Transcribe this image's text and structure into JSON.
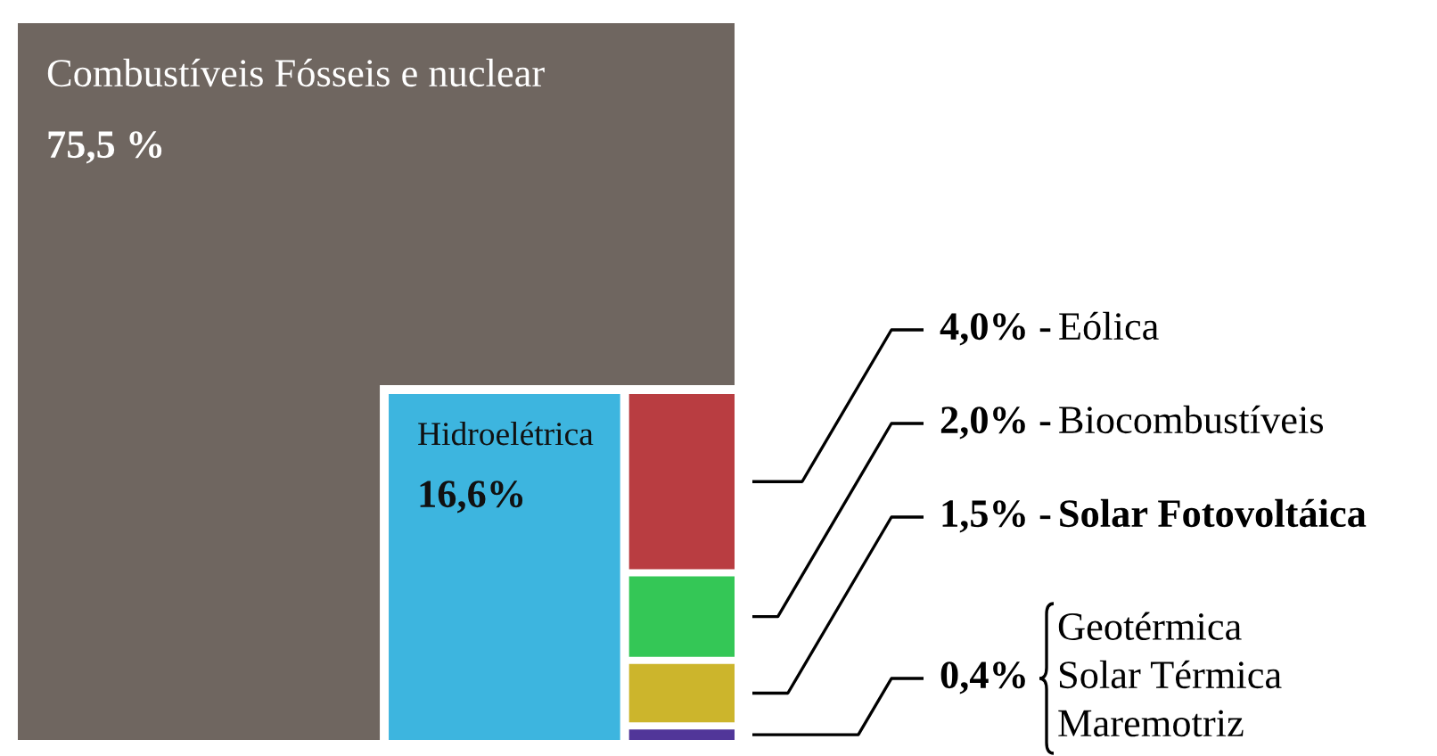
{
  "chart_data": {
    "type": "other",
    "categories": [
      "Combustíveis Fósseis e nuclear",
      "Hidroelétrica",
      "Eólica",
      "Biocombustíveis",
      "Solar Fotovoltáica",
      "Geotérmica\nSolar Térmica\nMaremotriz"
    ],
    "values": [
      75.5,
      16.6,
      4.0,
      2.0,
      1.5,
      0.4
    ],
    "value_labels": [
      "75,5 %",
      "16,6%",
      "4,0% -",
      "2,0% -",
      "1,5% -",
      "0,4%"
    ],
    "colors": [
      "#6f6660",
      "#3db5df",
      "#b93d41",
      "#34c756",
      "#ccb52c",
      "#513699"
    ]
  }
}
